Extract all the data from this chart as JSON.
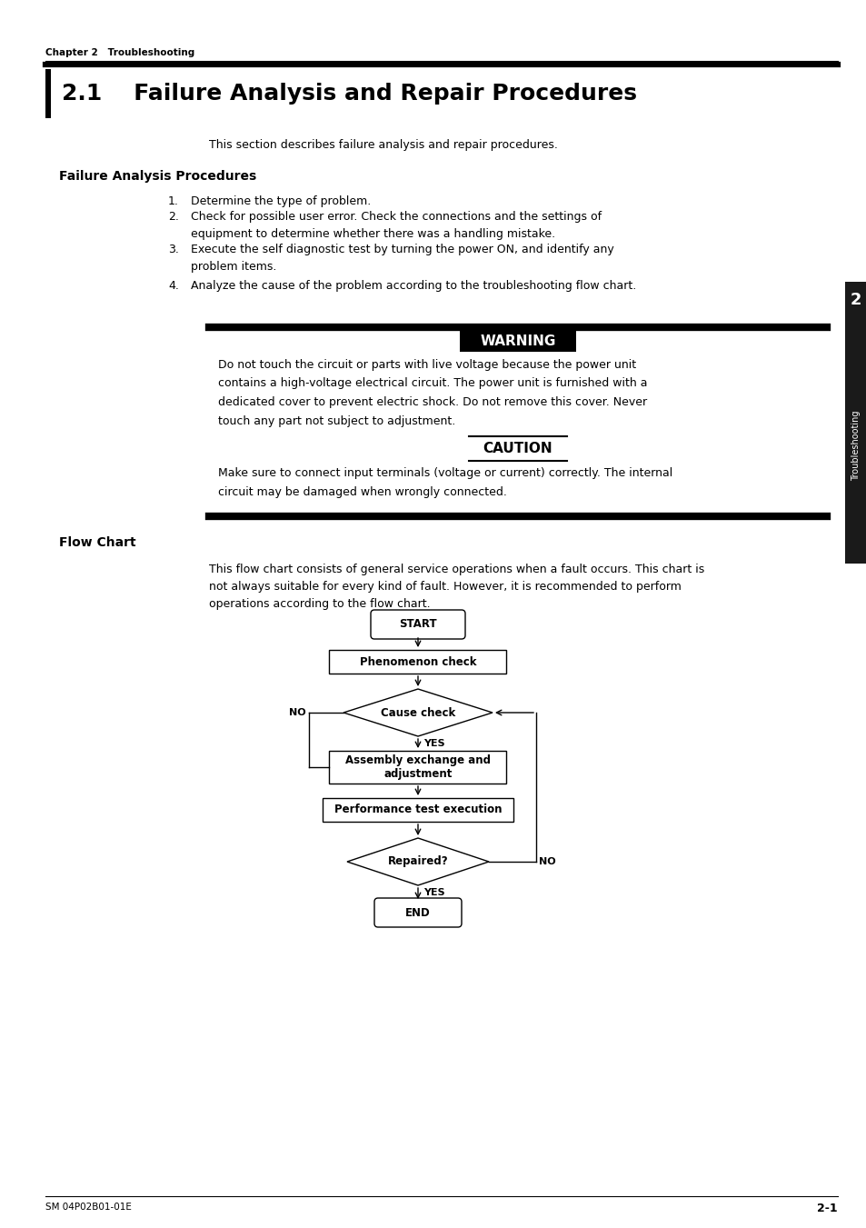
{
  "page_bg": "#ffffff",
  "chapter_label": "Chapter 2   Troubleshooting",
  "section_title": "2.1    Failure Analysis and Repair Procedures",
  "intro_text": "This section describes failure analysis and repair procedures.",
  "subsection1_title": "Failure Analysis Procedures",
  "list_items": [
    "Determine the type of problem.",
    "Check for possible user error. Check the connections and the settings of\nequipment to determine whether there was a handling mistake.",
    "Execute the self diagnostic test by turning the power ON, and identify any\nproblem items.",
    "Analyze the cause of the problem according to the troubleshooting flow chart."
  ],
  "warning_text": "Do not touch the circuit or parts with live voltage because the power unit\ncontains a high-voltage electrical circuit. The power unit is furnished with a\ndedicated cover to prevent electric shock. Do not remove this cover. Never\ntouch any part not subject to adjustment.",
  "caution_text": "Make sure to connect input terminals (voltage or current) correctly. The internal\ncircuit may be damaged when wrongly connected.",
  "subsection2_title": "Flow Chart",
  "flowchart_intro": "This flow chart consists of general service operations when a fault occurs. This chart is\nnot always suitable for every kind of fault. However, it is recommended to perform\noperations according to the flow chart.",
  "footer_left": "SM 04P02B01-01E",
  "footer_right": "2-1",
  "sidebar_number": "2",
  "sidebar_text": "Troubleshooting"
}
